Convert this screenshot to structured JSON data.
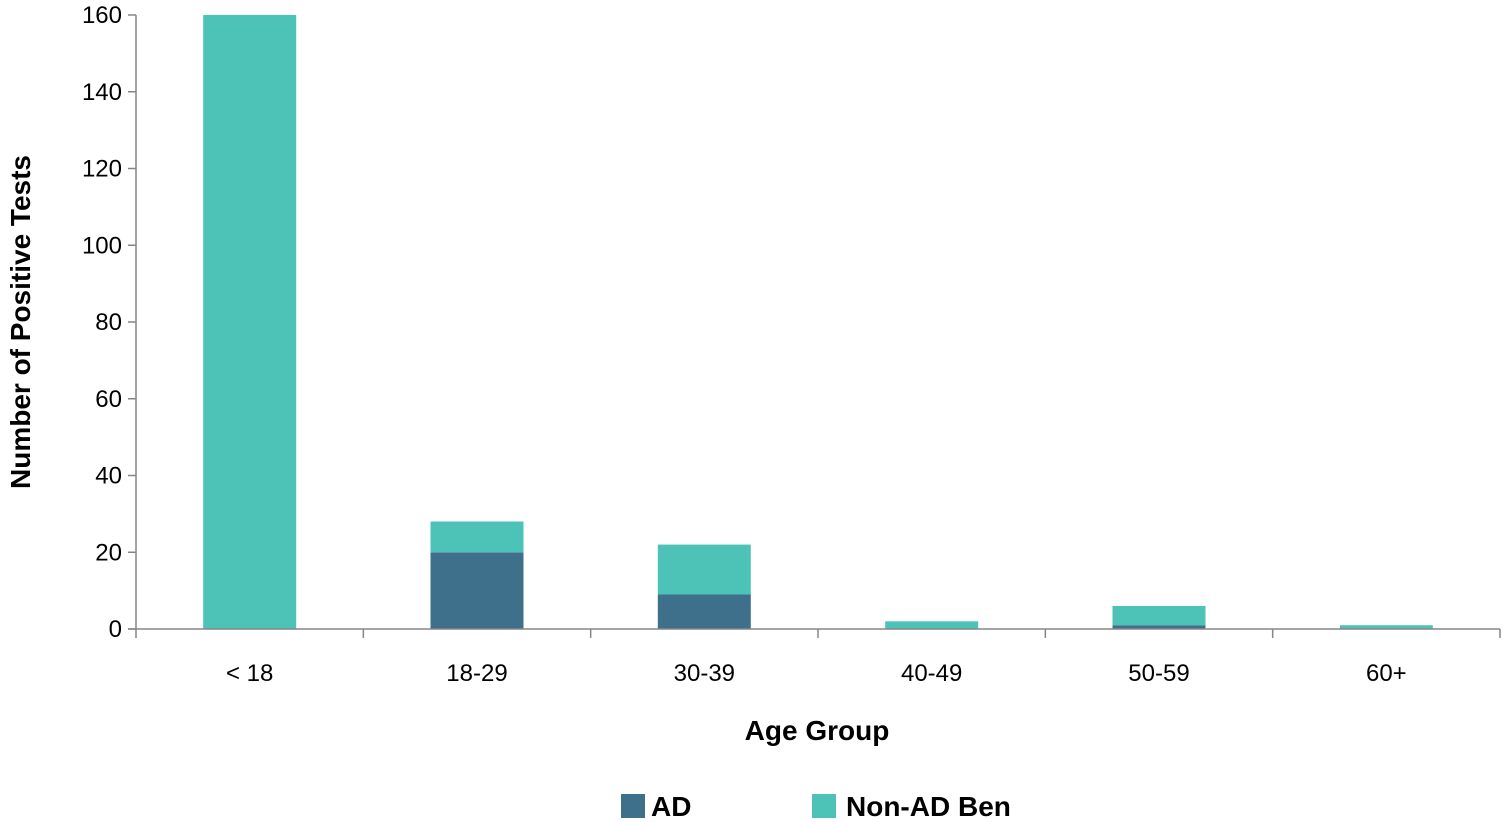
{
  "chart_data": {
    "type": "bar",
    "stacked": true,
    "title": "",
    "xlabel": "Age Group",
    "ylabel": "Number of Positive Tests",
    "categories": [
      "< 18",
      "18-29",
      "30-39",
      "40-49",
      "50-59",
      "60+"
    ],
    "series": [
      {
        "name": "AD",
        "color": "#3E708C",
        "values": [
          0,
          20,
          9,
          0,
          1,
          0
        ]
      },
      {
        "name": "Non-AD Ben",
        "color": "#4DC3B8",
        "values": [
          160,
          8,
          13,
          2,
          5,
          1
        ]
      }
    ],
    "ylim": [
      0,
      160
    ],
    "yticks": [
      0,
      20,
      40,
      60,
      80,
      100,
      120,
      140,
      160
    ],
    "grid": false,
    "legend_position": "bottom"
  }
}
